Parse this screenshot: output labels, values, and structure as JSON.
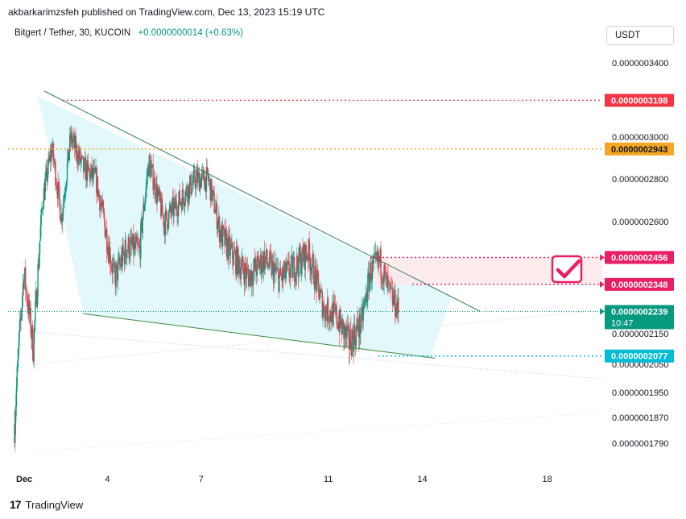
{
  "header": {
    "published_by": "akbarkarimzsfeh published on TradingView.com, Dec 13, 2023 15:19 UTC"
  },
  "symbol": {
    "title": "Bitgert / Tether, 30, KUCOIN",
    "change": "+0.0000000014 (+0.63%)"
  },
  "currency_button": {
    "label": "USDT"
  },
  "footer": {
    "logo_text": "TradingView",
    "logo_mark": "17"
  },
  "colors": {
    "up": "#089981",
    "down": "#f23645",
    "resistance": "#f23645",
    "gold": "#f5a623",
    "magenta": "#e91e63",
    "cyan": "#00bcd4",
    "triangle_fill": "#e0f7fa",
    "zone_fill": "#fde7ea"
  },
  "chart_data": {
    "type": "candlestick",
    "x_ticks": [
      {
        "label": "Dec",
        "day": 1
      },
      {
        "label": "4",
        "day": 4
      },
      {
        "label": "7",
        "day": 7
      },
      {
        "label": "11",
        "day": 11
      },
      {
        "label": "14",
        "day": 14
      },
      {
        "label": "18",
        "day": 18
      }
    ],
    "x_range_days": [
      1,
      19.25
    ],
    "y_range": [
      1.7e-07,
      3.5e-07
    ],
    "y_ticks": [
      "0.0000003400",
      "0.0000003000",
      "0.0000002800",
      "0.0000002600",
      "0.0000002150",
      "0.0000002050",
      "0.0000001950",
      "0.0000001870",
      "0.0000001790"
    ],
    "price_labels": [
      {
        "text": "0.0000003198",
        "value": 3.198e-07,
        "kind": "resistance"
      },
      {
        "text": "0.0000002943",
        "value": 2.943e-07,
        "kind": "gold"
      },
      {
        "text": "0.0000002456",
        "value": 2.456e-07,
        "kind": "magenta"
      },
      {
        "text": "0.0000002348",
        "value": 2.348e-07,
        "kind": "magenta"
      },
      {
        "text": "0.0000002239",
        "value": 2.239e-07,
        "kind": "last"
      },
      {
        "text": "0.0000002077",
        "value": 2.077e-07,
        "kind": "cyan"
      }
    ],
    "last_price_countdown": "10:47",
    "price_path": [
      {
        "day": 1.0,
        "price": 1.85e-07
      },
      {
        "day": 1.3,
        "price": 2.4e-07
      },
      {
        "day": 1.6,
        "price": 2.1e-07
      },
      {
        "day": 1.9,
        "price": 2.7e-07
      },
      {
        "day": 2.2,
        "price": 2.95e-07
      },
      {
        "day": 2.5,
        "price": 2.62e-07
      },
      {
        "day": 2.8,
        "price": 3e-07
      },
      {
        "day": 3.2,
        "price": 2.85e-07
      },
      {
        "day": 3.6,
        "price": 2.8e-07
      },
      {
        "day": 3.9,
        "price": 2.58e-07
      },
      {
        "day": 4.2,
        "price": 2.37e-07
      },
      {
        "day": 4.6,
        "price": 2.5e-07
      },
      {
        "day": 5.0,
        "price": 2.48e-07
      },
      {
        "day": 5.3,
        "price": 2.88e-07
      },
      {
        "day": 5.8,
        "price": 2.6e-07
      },
      {
        "day": 6.3,
        "price": 2.7e-07
      },
      {
        "day": 6.8,
        "price": 2.8e-07
      },
      {
        "day": 7.2,
        "price": 2.8e-07
      },
      {
        "day": 7.6,
        "price": 2.55e-07
      },
      {
        "day": 8.0,
        "price": 2.46e-07
      },
      {
        "day": 8.5,
        "price": 2.38e-07
      },
      {
        "day": 9.0,
        "price": 2.45e-07
      },
      {
        "day": 9.5,
        "price": 2.37e-07
      },
      {
        "day": 10.0,
        "price": 2.42e-07
      },
      {
        "day": 10.4,
        "price": 2.48e-07
      },
      {
        "day": 10.9,
        "price": 2.25e-07
      },
      {
        "day": 11.3,
        "price": 2.22e-07
      },
      {
        "day": 11.7,
        "price": 2.12e-07
      },
      {
        "day": 12.1,
        "price": 2.19e-07
      },
      {
        "day": 12.4,
        "price": 2.4e-07
      },
      {
        "day": 12.7,
        "price": 2.44e-07
      },
      {
        "day": 13.0,
        "price": 2.31e-07
      },
      {
        "day": 13.3,
        "price": 2.24e-07
      }
    ],
    "trend_lines": [
      {
        "name": "upper-trendline",
        "from": {
          "day": 1.6,
          "price": 3.22e-07
        },
        "to": {
          "day": 15.9,
          "price": 2.24e-07
        }
      },
      {
        "name": "lower-trendline",
        "from": {
          "day": 3.2,
          "price": 2.23e-07
        },
        "to": {
          "day": 14.3,
          "price": 2.07e-07
        }
      }
    ]
  }
}
